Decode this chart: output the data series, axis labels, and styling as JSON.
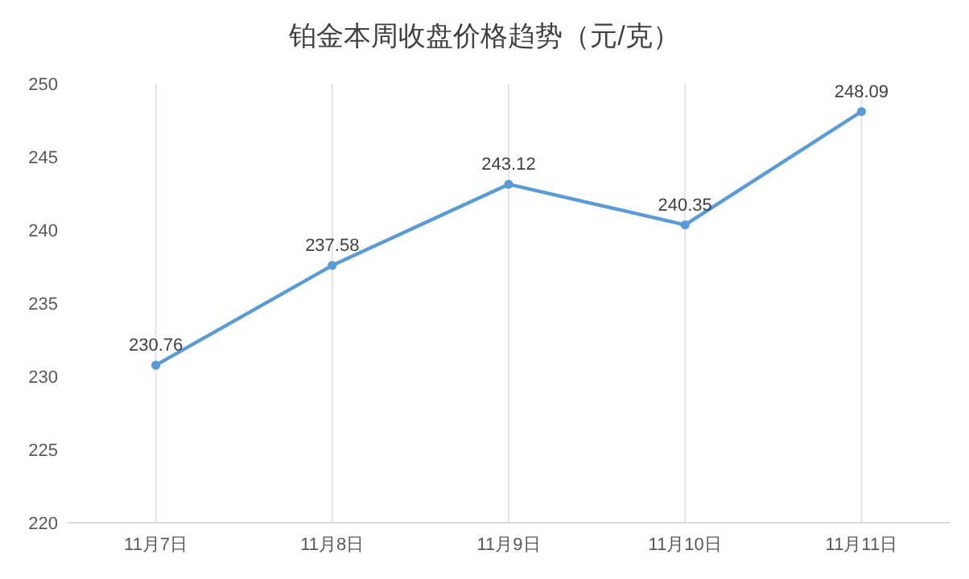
{
  "chart_data": {
    "type": "line",
    "title": "铂金本周收盘价格趋势（元/克）",
    "categories": [
      "11月7日",
      "11月8日",
      "11月9日",
      "11月10日",
      "11月11日"
    ],
    "series": [
      {
        "color": "#5b9bd5",
        "values": [
          230.76,
          237.58,
          243.12,
          240.35,
          248.09
        ]
      }
    ],
    "ylim": [
      220,
      250
    ],
    "yticks": [
      220,
      225,
      230,
      235,
      240,
      245,
      250
    ],
    "grid": "x",
    "data_labels": true,
    "marker": "circle",
    "line_style": "solid"
  }
}
